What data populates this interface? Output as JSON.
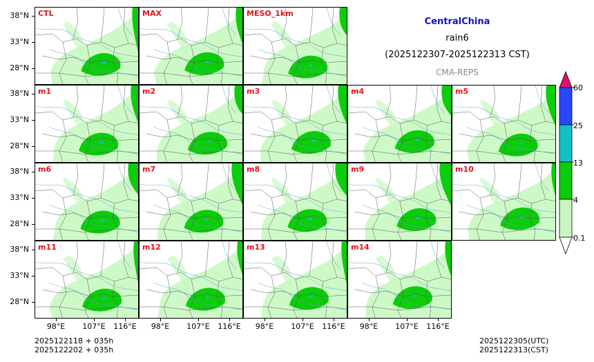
{
  "title": {
    "region": "CentralChina",
    "variable": "rain6",
    "period": "(2025122307-2025122313 CST)",
    "system": "CMA-REPS"
  },
  "panels": [
    {
      "label": "CTL"
    },
    {
      "label": "MAX"
    },
    {
      "label": "MESO_1km"
    },
    {
      "label": "m1"
    },
    {
      "label": "m2"
    },
    {
      "label": "m3"
    },
    {
      "label": "m4"
    },
    {
      "label": "m5"
    },
    {
      "label": "m6"
    },
    {
      "label": "m7"
    },
    {
      "label": "m8"
    },
    {
      "label": "m9"
    },
    {
      "label": "m10"
    },
    {
      "label": "m11"
    },
    {
      "label": "m12"
    },
    {
      "label": "m13"
    },
    {
      "label": "m14"
    }
  ],
  "axes": {
    "lat_labels": [
      "38°N",
      "33°N",
      "28°N"
    ],
    "lon_labels": [
      "98°E",
      "107°E",
      "116°E"
    ]
  },
  "colorbar": {
    "labels": [
      "60",
      "25",
      "13",
      "4",
      "0.1"
    ],
    "colors": {
      "over": "#e0106e",
      "c25_60": "#2846ff",
      "c13_25": "#12c0c8",
      "c4_13": "#0ccc0c",
      "c01_4": "#c8f8c0",
      "under": "#ffffff"
    }
  },
  "colors": {
    "light_rain": "#c8f8c0",
    "moderate_rain": "#0ccc0c",
    "heavy_rain": "#12c0c8",
    "river": "#5aa0e0",
    "border": "#555555",
    "label": "#e8101a"
  },
  "footer": {
    "left_line1": "2025122118  +  035h",
    "left_line2": "2025122202  +  035h",
    "right_line1": "2025122305(UTC)",
    "right_line2": "2025122313(CST)"
  }
}
